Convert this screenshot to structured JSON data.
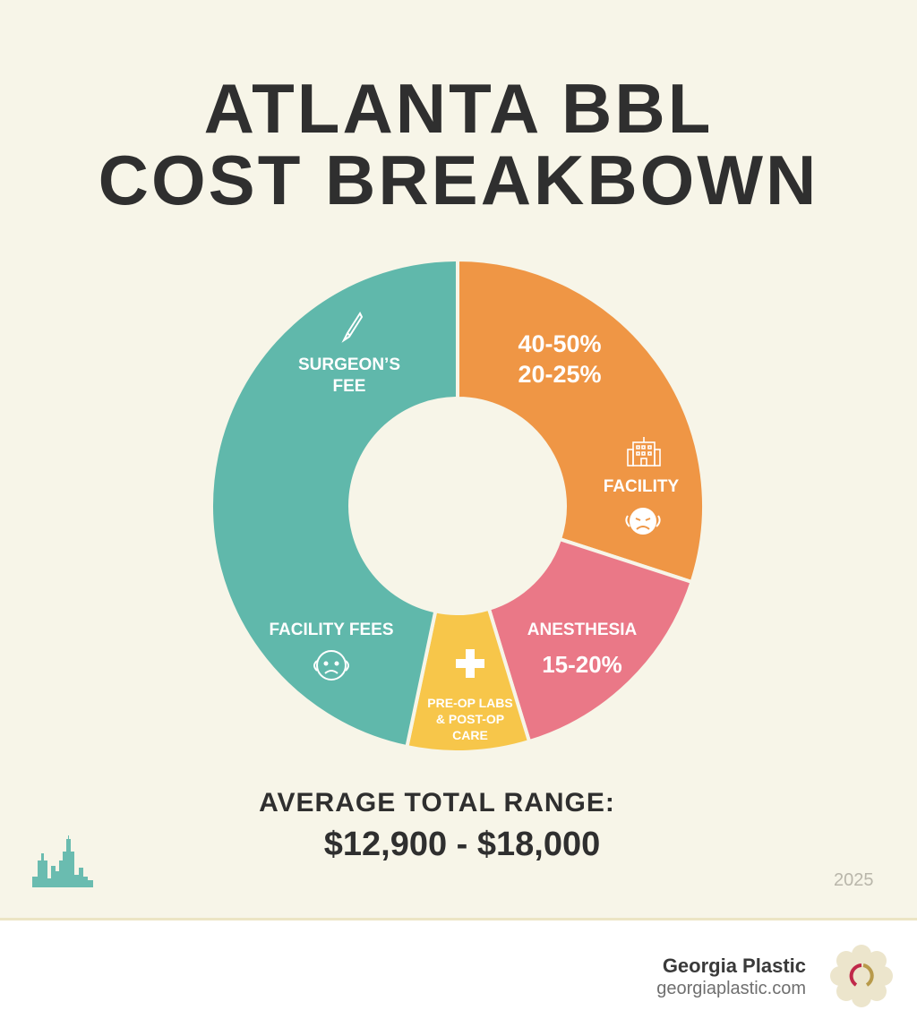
{
  "title": {
    "line1": "ATLANTA BBL",
    "line2": "COST BREAKBOWN"
  },
  "chart_data": {
    "type": "pie",
    "variant": "donut",
    "title": "ATLANTA BBL COST BREAKBOWN",
    "slices": [
      {
        "name": "orange",
        "label": "FACILITY",
        "percent_labels": [
          "40-50%",
          "20-25%"
        ],
        "share": 30,
        "color": "#ef9645"
      },
      {
        "name": "pink",
        "label": "ANESTHESIA",
        "percent_labels": [
          "15-20%"
        ],
        "share": 15.3,
        "color": "#ea7887"
      },
      {
        "name": "yellow",
        "label": "PRE-OP LABS & POST-OP CARE",
        "label_lines": [
          "PRE-OP LABS",
          "& POST-OP",
          "CARE"
        ],
        "share": 8,
        "color": "#f7c64a"
      },
      {
        "name": "teal",
        "label": "SURGEON'S FEE / FACILITY FEES",
        "label_lines": [
          "SURGEON’S",
          "FEE"
        ],
        "second_label": "FACILITY FEES",
        "share": 46.7,
        "color": "#60b8ab"
      }
    ],
    "start_angle_deg": 0,
    "direction": "clockwise"
  },
  "total": {
    "label": "AVERAGE TOTAL RANGE:",
    "value": "$12,900 - $18,000"
  },
  "year": "2025",
  "footer": {
    "brand": "Georgia Plastic",
    "url": "georgiaplastic.com"
  }
}
